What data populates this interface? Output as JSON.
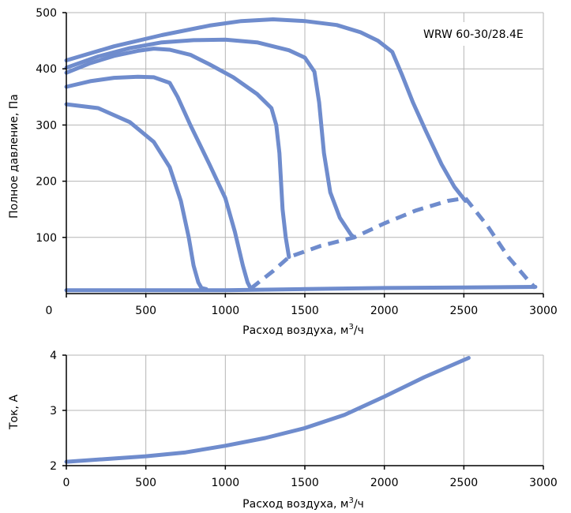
{
  "charts": {
    "pressure": {
      "annotation": "WRW 60-30/28.4E",
      "ylabel": "Полное давление, Па",
      "xlabel_prefix": "Расход воздуха, м",
      "xlabel_sup": "3",
      "xlabel_suffix": "/ч"
    },
    "current": {
      "ylabel": "Ток, А",
      "xlabel_prefix": "Расход воздуха, м",
      "xlabel_sup": "3",
      "xlabel_suffix": "/ч"
    }
  },
  "colors": {
    "series": "#6f8ccd",
    "grid": "#b5b5b5",
    "axis": "#000000"
  },
  "chart_data": [
    {
      "type": "line",
      "xlabel": "Расход воздуха, м3/ч",
      "ylabel": "Полное давление, Па",
      "xlim": [
        0,
        3000
      ],
      "ylim": [
        0,
        500
      ],
      "xticks": [
        "0",
        "500",
        "1000",
        "1500",
        "2000",
        "2500",
        "3000"
      ],
      "yticks": [
        "100",
        "200",
        "300",
        "400",
        "500"
      ],
      "grid": true,
      "annotation": "WRW 60-30/28.4E",
      "series": [
        {
          "style": "solid",
          "points": [
            [
              0,
              337
            ],
            [
              200,
              330
            ],
            [
              400,
              305
            ],
            [
              550,
              270
            ],
            [
              650,
              225
            ],
            [
              720,
              165
            ],
            [
              770,
              100
            ],
            [
              800,
              50
            ],
            [
              830,
              20
            ],
            [
              850,
              10
            ],
            [
              880,
              8
            ]
          ]
        },
        {
          "style": "solid",
          "points": [
            [
              0,
              368
            ],
            [
              150,
              378
            ],
            [
              300,
              384
            ],
            [
              450,
              386
            ],
            [
              550,
              385
            ],
            [
              650,
              375
            ],
            [
              700,
              350
            ],
            [
              780,
              300
            ],
            [
              900,
              230
            ],
            [
              1000,
              170
            ],
            [
              1060,
              110
            ],
            [
              1110,
              50
            ],
            [
              1140,
              20
            ],
            [
              1160,
              9
            ]
          ]
        },
        {
          "style": "solid",
          "points": [
            [
              0,
              393
            ],
            [
              150,
              410
            ],
            [
              300,
              423
            ],
            [
              450,
              432
            ],
            [
              550,
              436
            ],
            [
              650,
              434
            ],
            [
              780,
              425
            ],
            [
              900,
              408
            ],
            [
              1050,
              385
            ],
            [
              1200,
              355
            ],
            [
              1290,
              330
            ],
            [
              1320,
              300
            ],
            [
              1340,
              250
            ],
            [
              1360,
              150
            ],
            [
              1380,
              100
            ],
            [
              1400,
              65
            ]
          ]
        },
        {
          "style": "solid",
          "points": [
            [
              0,
              402
            ],
            [
              200,
              422
            ],
            [
              400,
              437
            ],
            [
              600,
              447
            ],
            [
              800,
              451
            ],
            [
              1000,
              452
            ],
            [
              1200,
              447
            ],
            [
              1400,
              433
            ],
            [
              1500,
              420
            ],
            [
              1560,
              395
            ],
            [
              1590,
              340
            ],
            [
              1620,
              250
            ],
            [
              1660,
              180
            ],
            [
              1720,
              135
            ],
            [
              1790,
              105
            ],
            [
              1810,
              100
            ]
          ]
        },
        {
          "style": "solid",
          "points": [
            [
              0,
              415
            ],
            [
              300,
              440
            ],
            [
              600,
              460
            ],
            [
              900,
              477
            ],
            [
              1100,
              485
            ],
            [
              1300,
              488
            ],
            [
              1500,
              485
            ],
            [
              1700,
              478
            ],
            [
              1850,
              465
            ],
            [
              1960,
              450
            ],
            [
              2050,
              430
            ],
            [
              2110,
              390
            ],
            [
              2180,
              340
            ],
            [
              2260,
              290
            ],
            [
              2360,
              230
            ],
            [
              2440,
              190
            ],
            [
              2510,
              165
            ]
          ]
        },
        {
          "style": "solid",
          "points": [
            [
              0,
              6
            ],
            [
              500,
              6
            ],
            [
              1000,
              6
            ],
            [
              1500,
              8
            ],
            [
              2000,
              10
            ],
            [
              2500,
              11
            ],
            [
              2950,
              12
            ]
          ]
        },
        {
          "style": "dashed",
          "points": [
            [
              1160,
              9
            ],
            [
              1300,
              40
            ],
            [
              1400,
              65
            ],
            [
              1600,
              85
            ],
            [
              1810,
              100
            ],
            [
              2000,
              125
            ],
            [
              2200,
              148
            ],
            [
              2400,
              165
            ],
            [
              2510,
              170
            ]
          ]
        },
        {
          "style": "dashed",
          "points": [
            [
              2510,
              170
            ],
            [
              2650,
              120
            ],
            [
              2780,
              65
            ],
            [
              2900,
              25
            ],
            [
              2950,
              10
            ]
          ]
        }
      ]
    },
    {
      "type": "line",
      "xlabel": "Расход воздуха, м3/ч",
      "ylabel": "Ток, А",
      "xlim": [
        0,
        3000
      ],
      "ylim": [
        2,
        4
      ],
      "xticks": [
        "0",
        "500",
        "1000",
        "1500",
        "2000",
        "2500",
        "3000"
      ],
      "yticks": [
        "2",
        "3",
        "4"
      ],
      "grid": true,
      "series": [
        {
          "style": "solid",
          "points": [
            [
              0,
              2.07
            ],
            [
              250,
              2.12
            ],
            [
              500,
              2.17
            ],
            [
              750,
              2.24
            ],
            [
              1000,
              2.36
            ],
            [
              1250,
              2.5
            ],
            [
              1500,
              2.68
            ],
            [
              1750,
              2.92
            ],
            [
              2000,
              3.25
            ],
            [
              2250,
              3.6
            ],
            [
              2530,
              3.95
            ]
          ]
        }
      ]
    }
  ]
}
